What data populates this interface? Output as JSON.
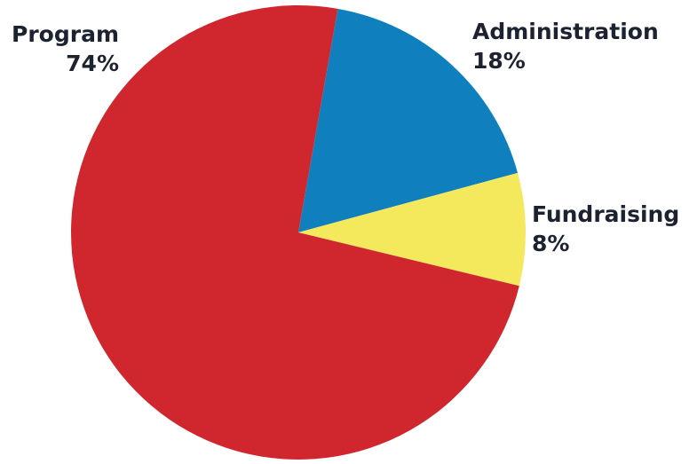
{
  "chart_data": {
    "type": "pie",
    "title": "",
    "slices": [
      {
        "label": "Administration",
        "value": 18,
        "value_label": "18%",
        "color": "#0f80bd"
      },
      {
        "label": "Fundraising",
        "value": 8,
        "value_label": "8%",
        "color": "#f4e85c"
      },
      {
        "label": "Program",
        "value": 74,
        "value_label": "74%",
        "color": "#d0272f"
      }
    ],
    "start_angle_deg": 10,
    "direction": "clockwise",
    "legend": "none",
    "label_placement": "outside"
  },
  "colors": {
    "background": "#ffffff",
    "label_text": "#1c2230"
  }
}
